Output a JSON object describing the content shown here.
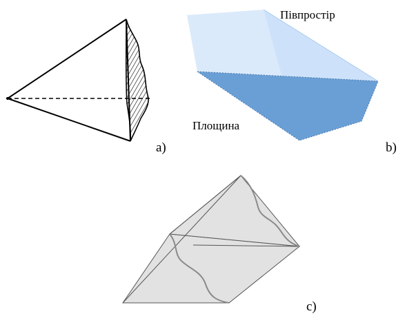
{
  "figures": {
    "a": {
      "label": "a)"
    },
    "b": {
      "label": "b)",
      "halfspace_label": "Півпростір",
      "plane_label": "Площина",
      "halfspace_color": "#bcd9f8",
      "plane_color": "#6a9fd6"
    },
    "c": {
      "label": "c)",
      "fill_color": "#e2e2e2"
    }
  }
}
